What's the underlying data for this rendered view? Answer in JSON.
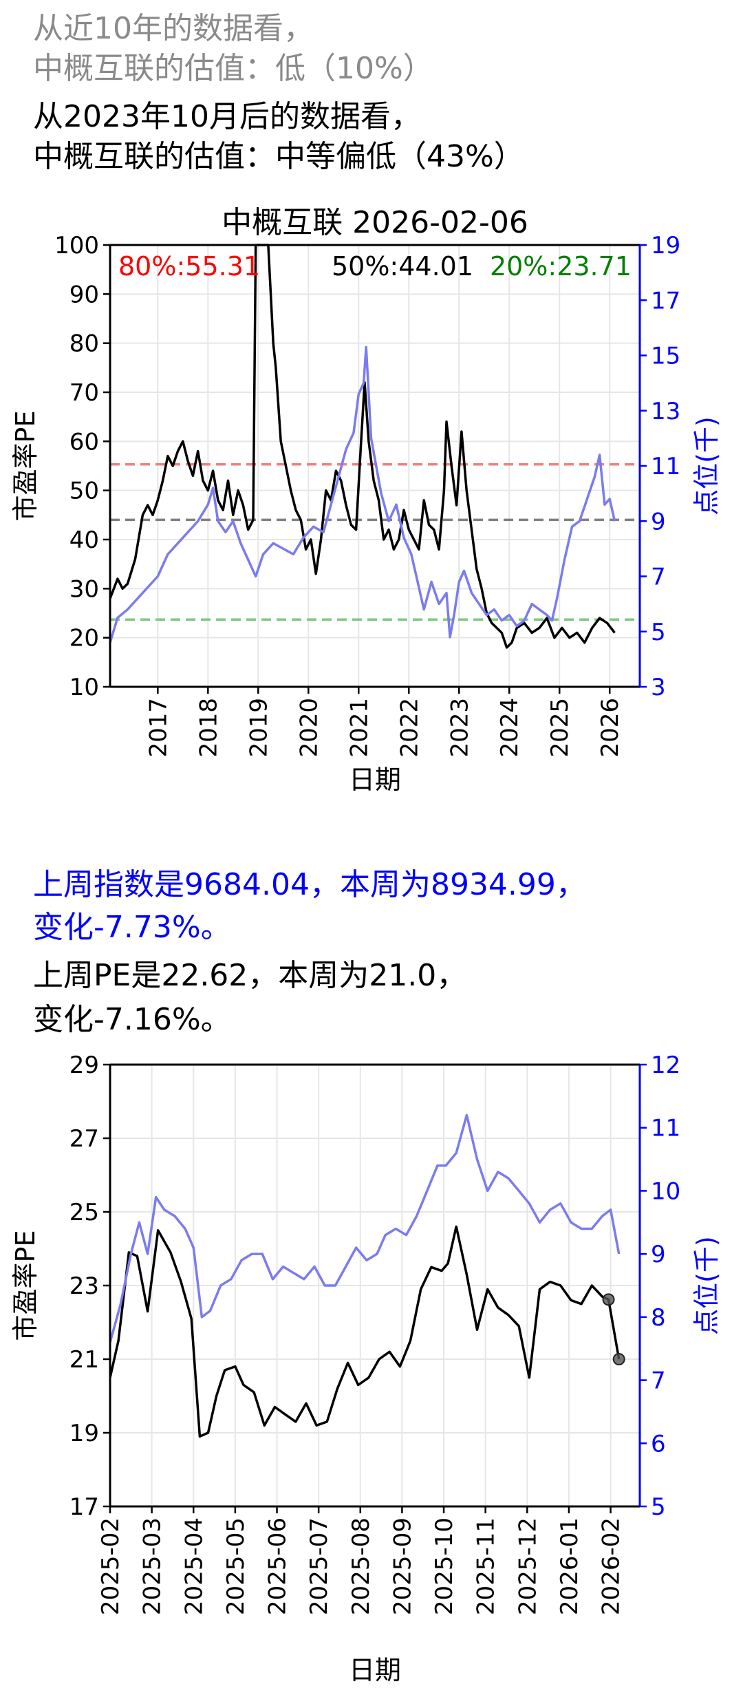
{
  "header": {
    "line1": "从近10年的数据看，",
    "line2": "中概互联的估值：低（10%）",
    "line3": "从2023年10月后的数据看，",
    "line4": "中概互联的估值：中等偏低（43%）"
  },
  "middle": {
    "line1": "上周指数是9684.04，本周为8934.99，",
    "line2": "变化-7.73%。",
    "line3": "上周PE是22.62，本周为21.0，",
    "line4": "变化-7.16%。"
  },
  "colors": {
    "pe": "#000000",
    "index": "#7b7bf0",
    "p80": "#f08080",
    "p50": "#808080",
    "p20": "#80c880",
    "right_axis": "#0000ff"
  },
  "chart_data": [
    {
      "type": "line",
      "title": "中概互联 2026-02-06",
      "xlabel": "日期",
      "ylabel": "市盈率PE",
      "ylabel_right": "点位(千)",
      "ylim": [
        10,
        100
      ],
      "ylim_right": [
        3,
        19
      ],
      "yticks": [
        10,
        20,
        30,
        40,
        50,
        60,
        70,
        80,
        90,
        100
      ],
      "yticks_right": [
        3,
        5,
        7,
        9,
        11,
        13,
        15,
        17,
        19
      ],
      "xlim": [
        2016.05,
        2026.6
      ],
      "xticks": [
        2017,
        2018,
        2019,
        2020,
        2021,
        2022,
        2023,
        2024,
        2025,
        2026
      ],
      "xtick_labels": [
        "2017",
        "2018",
        "2019",
        "2020",
        "2021",
        "2022",
        "2023",
        "2024",
        "2025",
        "2026"
      ],
      "grid": true,
      "percentiles": [
        {
          "label": "80%:55.31",
          "value": 55.31,
          "color": "#ff0000",
          "line_color": "#f08080"
        },
        {
          "label": "50%:44.01",
          "value": 44.01,
          "color": "#000000",
          "line_color": "#808080"
        },
        {
          "label": "20%:23.71",
          "value": 23.71,
          "color": "#008000",
          "line_color": "#80c880"
        }
      ],
      "series": [
        {
          "axis": "left",
          "x": [
            2016.05,
            2016.2,
            2016.3,
            2016.4,
            2016.55,
            2016.7,
            2016.8,
            2016.9,
            2017.0,
            2017.1,
            2017.2,
            2017.3,
            2017.4,
            2017.5,
            2017.6,
            2017.7,
            2017.8,
            2017.9,
            2018.0,
            2018.1,
            2018.2,
            2018.3,
            2018.4,
            2018.5,
            2018.6,
            2018.7,
            2018.8,
            2018.9,
            2018.95,
            2019.05,
            2019.1,
            2019.2,
            2019.3,
            2019.35,
            2019.45,
            2019.55,
            2019.65,
            2019.75,
            2019.85,
            2019.95,
            2020.05,
            2020.15,
            2020.25,
            2020.35,
            2020.45,
            2020.55,
            2020.65,
            2020.75,
            2020.85,
            2020.95,
            2021.05,
            2021.12,
            2021.2,
            2021.3,
            2021.4,
            2021.5,
            2021.6,
            2021.7,
            2021.8,
            2021.9,
            2022.0,
            2022.1,
            2022.2,
            2022.3,
            2022.4,
            2022.5,
            2022.6,
            2022.7,
            2022.75,
            2022.85,
            2022.95,
            2023.05,
            2023.15,
            2023.25,
            2023.35,
            2023.45,
            2023.55,
            2023.65,
            2023.75,
            2023.85,
            2023.95,
            2024.05,
            2024.15,
            2024.3,
            2024.45,
            2024.6,
            2024.75,
            2024.9,
            2025.05,
            2025.2,
            2025.35,
            2025.5,
            2025.65,
            2025.8,
            2025.95,
            2026.1
          ],
          "y": [
            28,
            32,
            30,
            31,
            36,
            45,
            47,
            45,
            48,
            52,
            57,
            55,
            58,
            60,
            56,
            53,
            58,
            52,
            50,
            54,
            48,
            46,
            52,
            45,
            50,
            47,
            42,
            44,
            100,
            100,
            100,
            100,
            80,
            75,
            60,
            55,
            50,
            46,
            44,
            38,
            40,
            33,
            40,
            50,
            48,
            54,
            52,
            47,
            43,
            42,
            60,
            72,
            60,
            52,
            48,
            40,
            42,
            38,
            40,
            46,
            42,
            40,
            38,
            48,
            43,
            42,
            38,
            50,
            64,
            55,
            47,
            62,
            50,
            42,
            34,
            30,
            25,
            23,
            22,
            21,
            18,
            19,
            22,
            23,
            21,
            22,
            24,
            20,
            22,
            20,
            21,
            19,
            22,
            24,
            23,
            21
          ]
        },
        {
          "axis": "right",
          "x": [
            2016.05,
            2016.2,
            2016.4,
            2016.6,
            2016.8,
            2017.0,
            2017.2,
            2017.4,
            2017.6,
            2017.8,
            2018.0,
            2018.1,
            2018.2,
            2018.35,
            2018.5,
            2018.65,
            2018.8,
            2018.95,
            2019.1,
            2019.3,
            2019.5,
            2019.7,
            2019.9,
            2020.1,
            2020.3,
            2020.45,
            2020.6,
            2020.75,
            2020.9,
            2021.0,
            2021.1,
            2021.15,
            2021.25,
            2021.35,
            2021.45,
            2021.6,
            2021.75,
            2021.9,
            2022.05,
            2022.2,
            2022.3,
            2022.45,
            2022.6,
            2022.75,
            2022.82,
            2022.9,
            2023.0,
            2023.1,
            2023.25,
            2023.4,
            2023.55,
            2023.7,
            2023.85,
            2024.0,
            2024.15,
            2024.3,
            2024.45,
            2024.6,
            2024.75,
            2024.85,
            2024.95,
            2025.1,
            2025.25,
            2025.4,
            2025.55,
            2025.7,
            2025.8,
            2025.9,
            2026.0,
            2026.1
          ],
          "y": [
            4.6,
            5.5,
            5.8,
            6.2,
            6.6,
            7.0,
            7.8,
            8.2,
            8.6,
            9.0,
            9.6,
            10.2,
            9.0,
            8.6,
            9.0,
            8.2,
            7.6,
            7.0,
            7.8,
            8.2,
            8.0,
            7.8,
            8.4,
            8.8,
            8.6,
            9.6,
            10.6,
            11.6,
            12.2,
            13.6,
            14.0,
            15.3,
            12.0,
            11.0,
            10.0,
            9.0,
            9.6,
            8.4,
            7.8,
            6.6,
            5.8,
            6.8,
            6.0,
            6.4,
            4.8,
            5.6,
            6.8,
            7.2,
            6.4,
            6.0,
            5.6,
            5.8,
            5.4,
            5.6,
            5.2,
            5.4,
            6.0,
            5.8,
            5.6,
            5.4,
            6.2,
            7.6,
            8.8,
            9.0,
            9.8,
            10.6,
            11.4,
            9.6,
            9.8,
            9.0
          ]
        }
      ]
    },
    {
      "type": "line",
      "xlabel": "日期",
      "ylabel": "市盈率PE",
      "ylabel_right": "点位(千)",
      "ylim": [
        17,
        29
      ],
      "ylim_right": [
        5,
        12
      ],
      "yticks": [
        17,
        19,
        21,
        23,
        25,
        27,
        29
      ],
      "yticks_right": [
        5,
        6,
        7,
        8,
        9,
        10,
        11,
        12
      ],
      "xlim": [
        0,
        12.7
      ],
      "xticks": [
        0,
        1,
        2,
        3,
        4,
        5,
        6,
        7,
        8,
        9,
        10,
        11,
        12
      ],
      "xtick_labels": [
        "2025-02",
        "2025-03",
        "2025-04",
        "2025-05",
        "2025-06",
        "2025-07",
        "2025-08",
        "2025-09",
        "2025-10",
        "2025-11",
        "2025-12",
        "2026-01",
        "2026-02"
      ],
      "grid": true,
      "highlight_points": [
        {
          "x": 11.95,
          "y": 22.62
        },
        {
          "x": 12.2,
          "y": 21.0
        }
      ],
      "series": [
        {
          "axis": "left",
          "x": [
            0.0,
            0.2,
            0.45,
            0.65,
            0.9,
            1.15,
            1.45,
            1.7,
            1.95,
            2.15,
            2.35,
            2.55,
            2.75,
            3.0,
            3.2,
            3.45,
            3.7,
            3.95,
            4.2,
            4.45,
            4.7,
            4.95,
            5.2,
            5.45,
            5.7,
            5.95,
            6.2,
            6.45,
            6.7,
            6.95,
            7.2,
            7.45,
            7.7,
            7.95,
            8.1,
            8.3,
            8.55,
            8.8,
            9.05,
            9.3,
            9.55,
            9.8,
            10.05,
            10.3,
            10.55,
            10.8,
            11.05,
            11.3,
            11.55,
            11.8,
            11.95,
            12.2
          ],
          "y": [
            20.5,
            21.5,
            23.9,
            23.8,
            22.3,
            24.5,
            23.9,
            23.1,
            22.1,
            18.9,
            19.0,
            20.0,
            20.7,
            20.8,
            20.3,
            20.1,
            19.2,
            19.7,
            19.5,
            19.3,
            19.8,
            19.2,
            19.3,
            20.2,
            20.9,
            20.3,
            20.5,
            21.0,
            21.2,
            20.8,
            21.5,
            22.9,
            23.5,
            23.4,
            23.6,
            24.6,
            23.3,
            21.8,
            22.9,
            22.4,
            22.2,
            21.9,
            20.5,
            22.9,
            23.1,
            23.0,
            22.6,
            22.5,
            23.0,
            22.7,
            22.62,
            21.0
          ]
        },
        {
          "axis": "right",
          "x": [
            0.0,
            0.25,
            0.5,
            0.7,
            0.9,
            1.1,
            1.3,
            1.55,
            1.8,
            2.0,
            2.2,
            2.4,
            2.65,
            2.9,
            3.15,
            3.4,
            3.65,
            3.9,
            4.15,
            4.4,
            4.65,
            4.9,
            5.15,
            5.4,
            5.65,
            5.9,
            6.15,
            6.4,
            6.6,
            6.85,
            7.1,
            7.35,
            7.6,
            7.85,
            8.05,
            8.3,
            8.55,
            8.8,
            9.05,
            9.3,
            9.55,
            9.8,
            10.05,
            10.3,
            10.55,
            10.8,
            11.05,
            11.3,
            11.55,
            11.8,
            12.0,
            12.2
          ],
          "y": [
            7.6,
            8.2,
            9.0,
            9.5,
            9.0,
            9.9,
            9.7,
            9.6,
            9.4,
            9.1,
            8.0,
            8.1,
            8.5,
            8.6,
            8.9,
            9.0,
            9.0,
            8.6,
            8.8,
            8.7,
            8.6,
            8.8,
            8.5,
            8.5,
            8.8,
            9.1,
            8.9,
            9.0,
            9.3,
            9.4,
            9.3,
            9.6,
            10.0,
            10.4,
            10.4,
            10.6,
            11.2,
            10.5,
            10.0,
            10.3,
            10.2,
            10.0,
            9.8,
            9.5,
            9.7,
            9.8,
            9.5,
            9.4,
            9.4,
            9.6,
            9.7,
            9.0
          ]
        }
      ]
    }
  ]
}
